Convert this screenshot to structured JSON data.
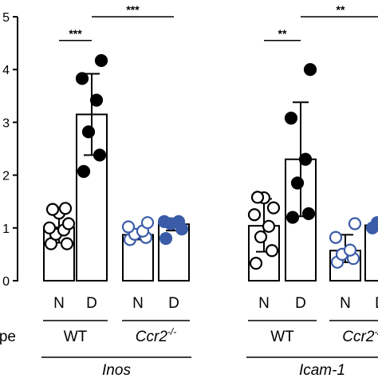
{
  "chart_data": {
    "type": "bar",
    "ylim": [
      0,
      5
    ],
    "yticks": [
      "0",
      "1",
      "2",
      "3",
      "4",
      "5"
    ],
    "row_label_fragment": "ype",
    "colors": {
      "wt": "#000000",
      "ccr2": "#3a5ca8"
    },
    "bars": [
      {
        "gene": "Inos",
        "genotype": "WT",
        "condition": "N",
        "mean": 1.01,
        "sd_low": 0.72,
        "sd_high": 1.32,
        "points": [
          0.7,
          0.7,
          0.88,
          0.96,
          1.0,
          1.08,
          1.28,
          1.35,
          1.37
        ],
        "filled": false,
        "color_key": "wt"
      },
      {
        "gene": "Inos",
        "genotype": "WT",
        "condition": "D",
        "mean": 3.15,
        "sd_low": 2.38,
        "sd_high": 3.92,
        "points": [
          2.07,
          2.38,
          2.82,
          3.42,
          3.83,
          4.17
        ],
        "filled": true,
        "color_key": "wt"
      },
      {
        "gene": "Inos",
        "genotype": "Ccr2-/-",
        "condition": "N",
        "mean": 0.87,
        "sd_low": 0.78,
        "sd_high": 0.96,
        "points": [
          0.78,
          0.82,
          0.88,
          0.94,
          1.02,
          1.1
        ],
        "filled": false,
        "color_key": "ccr2"
      },
      {
        "gene": "Inos",
        "genotype": "Ccr2-/-",
        "condition": "D",
        "mean": 1.07,
        "sd_low": 0.95,
        "sd_high": 1.18,
        "points": [
          0.8,
          0.98,
          1.08,
          1.12,
          1.12
        ],
        "filled": true,
        "color_key": "ccr2"
      },
      {
        "gene": "Icam-1",
        "genotype": "WT",
        "condition": "N",
        "mean": 1.04,
        "sd_low": 0.55,
        "sd_high": 1.55,
        "points": [
          0.33,
          0.57,
          0.83,
          1.03,
          1.25,
          1.38,
          1.57,
          1.58
        ],
        "filled": false,
        "color_key": "wt"
      },
      {
        "gene": "Icam-1",
        "genotype": "WT",
        "condition": "D",
        "mean": 2.3,
        "sd_low": 1.22,
        "sd_high": 3.38,
        "points": [
          1.2,
          1.27,
          1.85,
          2.3,
          3.08,
          4.0
        ],
        "filled": true,
        "color_key": "wt"
      },
      {
        "gene": "Icam-1",
        "genotype": "Ccr2-/-",
        "condition": "N",
        "mean": 0.57,
        "sd_low": 0.35,
        "sd_high": 0.87,
        "points": [
          0.35,
          0.42,
          0.5,
          0.58,
          0.82,
          1.08
        ],
        "filled": false,
        "color_key": "ccr2"
      },
      {
        "gene": "Icam-1",
        "genotype": "Ccr2-/-",
        "condition": "D",
        "mean": 1.05,
        "sd_low": 0.95,
        "sd_high": 1.1,
        "points": [
          1.0,
          1.05,
          1.1
        ],
        "filled": true,
        "color_key": "ccr2"
      }
    ],
    "condition_labels": [
      "N",
      "D",
      "N",
      "D",
      "N",
      "D",
      "N",
      "D"
    ],
    "genotype_labels": [
      {
        "text": "WT",
        "group": 0,
        "italic": false
      },
      {
        "text": "Ccr2",
        "sup": "-/-",
        "group": 1,
        "italic": true
      },
      {
        "text": "WT",
        "group": 2,
        "italic": false
      },
      {
        "text": "Ccr2",
        "sup": "-/-",
        "group": 3,
        "italic": true
      }
    ],
    "gene_labels": [
      "Inos",
      "Icam-1"
    ],
    "significance": [
      {
        "text": "***",
        "from_bar": 0,
        "to_bar": 1,
        "y": 4.55
      },
      {
        "text": "***",
        "from_bar": 1,
        "to_bar": 3,
        "y": 5.0
      },
      {
        "text": "**",
        "from_bar": 4,
        "to_bar": 5,
        "y": 4.55
      },
      {
        "text": "**",
        "from_bar": 5,
        "to_bar": 7,
        "y": 5.0
      }
    ]
  }
}
